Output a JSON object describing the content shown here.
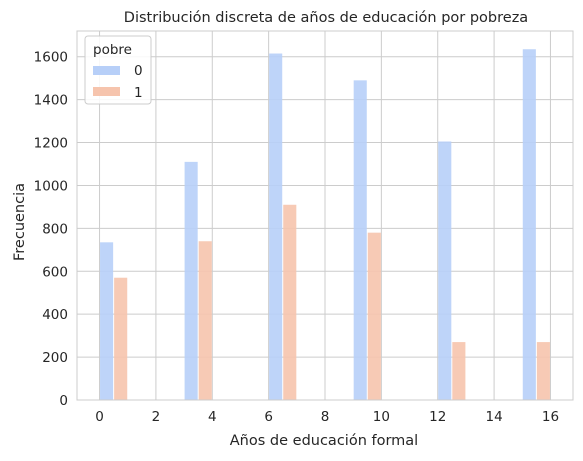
{
  "chart_data": {
    "type": "bar",
    "title": "Distribución discreta de años de educación por pobreza",
    "xlabel": "Años de educación formal",
    "ylabel": "Frecuencia",
    "xlim": [
      -0.8,
      16.8
    ],
    "ylim": [
      0,
      1720
    ],
    "x_ticks": [
      0,
      2,
      4,
      6,
      8,
      10,
      12,
      14,
      16
    ],
    "y_ticks": [
      0,
      200,
      400,
      600,
      800,
      1000,
      1200,
      1400,
      1600
    ],
    "x_categories": [
      0,
      3,
      6,
      9,
      12,
      15
    ],
    "grid": true,
    "legend": {
      "title": "pobre",
      "placement": "top-left"
    },
    "series": [
      {
        "name": "0",
        "color": "#b7cff8",
        "values": [
          735,
          1110,
          1615,
          1490,
          1205,
          1635
        ]
      },
      {
        "name": "1",
        "color": "#f6c4ad",
        "values": [
          570,
          740,
          910,
          780,
          270,
          270
        ]
      }
    ]
  }
}
